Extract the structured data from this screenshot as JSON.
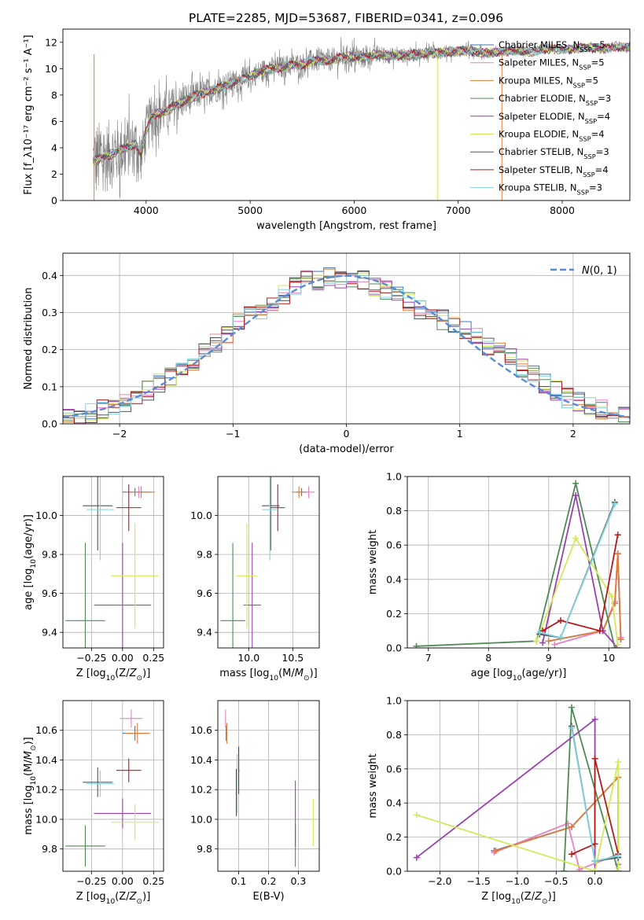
{
  "figure": {
    "title": "PLATE=2285, MJD=53687, FIBERID=0341, z=0.096"
  },
  "colors": {
    "Chabrier MILES": "#3a78b8",
    "Salpeter MILES": "#e87fc0",
    "Kroupa MILES": "#e07b39",
    "Chabrier ELODIE": "#4f8a56",
    "Salpeter ELODIE": "#9b3fb0",
    "Kroupa ELODIE": "#d4e85a",
    "Chabrier STELIB": "#555555",
    "Salpeter STELIB": "#b01b1b",
    "Kroupa STELIB": "#7fd4df",
    "normal_curve": "#5b8ad6",
    "data_spectrum": "#808080"
  },
  "chart_data": [
    {
      "type": "line",
      "id": "spectrum",
      "xlabel": "wavelength [Angstrom, rest frame]",
      "ylabel": "Flux [f_λ10⁻¹⁷ erg cm⁻² s⁻¹ A⁻¹]",
      "xlim": [
        3200,
        8650
      ],
      "ylim": [
        0,
        13
      ],
      "xticks": [
        4000,
        5000,
        6000,
        7000,
        8000
      ],
      "yticks": [
        0,
        2,
        4,
        6,
        8,
        10,
        12
      ],
      "grid": false,
      "legend_position": "right",
      "legend": [
        {
          "label": "Chabrier MILES, N",
          "sub": "SSP",
          "suffix": "=5",
          "series": "Chabrier MILES"
        },
        {
          "label": "Salpeter MILES, N",
          "sub": "SSP",
          "suffix": "=5",
          "series": "Salpeter MILES"
        },
        {
          "label": "Kroupa MILES, N",
          "sub": "SSP",
          "suffix": "=5",
          "series": "Kroupa MILES"
        },
        {
          "label": "Chabrier ELODIE, N",
          "sub": "SSP",
          "suffix": "=3",
          "series": "Chabrier ELODIE"
        },
        {
          "label": "Salpeter ELODIE, N",
          "sub": "SSP",
          "suffix": "=4",
          "series": "Salpeter ELODIE"
        },
        {
          "label": "Kroupa ELODIE, N",
          "sub": "SSP",
          "suffix": "=4",
          "series": "Kroupa ELODIE"
        },
        {
          "label": "Chabrier STELIB, N",
          "sub": "SSP",
          "suffix": "=3",
          "series": "Chabrier STELIB"
        },
        {
          "label": "Salpeter STELIB, N",
          "sub": "SSP",
          "suffix": "=4",
          "series": "Salpeter STELIB"
        },
        {
          "label": "Kroupa STELIB, N",
          "sub": "SSP",
          "suffix": "=3",
          "series": "Kroupa STELIB"
        }
      ],
      "model_shape": {
        "x": [
          3500,
          3600,
          3700,
          3800,
          3900,
          3950,
          4000,
          4050,
          4100,
          4200,
          4300,
          4400,
          4500,
          4600,
          4700,
          4800,
          4900,
          5000,
          5100,
          5200,
          5300,
          5400,
          5500,
          5600,
          5700,
          5800,
          5900,
          6000,
          6100,
          6200,
          6300,
          6400,
          6500,
          6600,
          6700,
          6800,
          6900,
          7000,
          7100,
          7200,
          7300,
          7400,
          7500,
          7600,
          7700,
          7800,
          7900,
          8000,
          8100,
          8200,
          8300,
          8400,
          8500,
          8600
        ],
        "y": [
          3.0,
          3.3,
          3.6,
          4.0,
          4.3,
          3.4,
          5.2,
          6.3,
          6.6,
          6.8,
          7.3,
          7.7,
          8.0,
          8.3,
          8.5,
          8.9,
          9.1,
          9.4,
          9.8,
          10.0,
          10.1,
          10.3,
          10.3,
          10.6,
          10.6,
          10.7,
          10.9,
          10.9,
          10.8,
          11.1,
          11.0,
          11.0,
          11.0,
          11.1,
          11.2,
          11.2,
          11.3,
          11.3,
          11.4,
          11.2,
          11.2,
          11.3,
          11.3,
          11.4,
          11.2,
          11.5,
          11.5,
          11.5,
          11.5,
          11.6,
          11.6,
          11.5,
          11.7,
          11.6
        ]
      },
      "data_noise_amplitude": {
        "x": [
          3500,
          4000,
          4500,
          5000,
          5600,
          6000,
          6400,
          6900,
          7400,
          8000,
          8600
        ],
        "y": [
          3.0,
          2.0,
          1.1,
          0.9,
          0.9,
          0.9,
          0.6,
          0.5,
          0.3,
          0.2,
          0.3
        ]
      },
      "spikes": [
        {
          "x": 6800,
          "series": "Kroupa ELODIE"
        },
        {
          "x": 7420,
          "series": "Kroupa MILES"
        },
        {
          "x": 3500,
          "series": "Kroupa MILES"
        }
      ]
    },
    {
      "type": "line",
      "id": "residuals",
      "xlabel": "(data-model)/error",
      "ylabel": "Normed distribution",
      "xlim": [
        -2.5,
        2.5
      ],
      "ylim": [
        0,
        0.46
      ],
      "xticks": [
        -2,
        -1,
        0,
        1,
        2
      ],
      "yticks": [
        0.0,
        0.1,
        0.2,
        0.3,
        0.4
      ],
      "grid": true,
      "legend_position": "top-right",
      "legend": [
        {
          "label": "N(0,1)",
          "series": "normal_curve"
        }
      ],
      "bin_width": 0.1,
      "histogram_center": {
        "x": [
          -2.45,
          -2.35,
          -2.25,
          -2.15,
          -2.05,
          -1.95,
          -1.85,
          -1.75,
          -1.65,
          -1.55,
          -1.45,
          -1.35,
          -1.25,
          -1.15,
          -1.05,
          -0.95,
          -0.85,
          -0.75,
          -0.65,
          -0.55,
          -0.45,
          -0.35,
          -0.25,
          -0.15,
          -0.05,
          0.05,
          0.15,
          0.25,
          0.35,
          0.45,
          0.55,
          0.65,
          0.75,
          0.85,
          0.95,
          1.05,
          1.15,
          1.25,
          1.35,
          1.45,
          1.55,
          1.65,
          1.75,
          1.85,
          1.95,
          2.05,
          2.15,
          2.25,
          2.35,
          2.45
        ],
        "y": [
          0.02,
          0.025,
          0.03,
          0.04,
          0.05,
          0.06,
          0.07,
          0.09,
          0.11,
          0.13,
          0.15,
          0.17,
          0.2,
          0.22,
          0.24,
          0.27,
          0.29,
          0.31,
          0.33,
          0.35,
          0.37,
          0.39,
          0.385,
          0.4,
          0.39,
          0.385,
          0.39,
          0.37,
          0.36,
          0.35,
          0.33,
          0.31,
          0.3,
          0.28,
          0.27,
          0.25,
          0.23,
          0.21,
          0.2,
          0.18,
          0.15,
          0.13,
          0.11,
          0.09,
          0.07,
          0.06,
          0.05,
          0.04,
          0.035,
          0.03
        ]
      }
    },
    {
      "type": "scatter",
      "id": "age-vs-Z",
      "xlabel": "Z [log10(Z/Z⊙)]",
      "ylabel": "age  [log10(age/yr)]",
      "xlim": [
        -0.48,
        0.33
      ],
      "ylim": [
        9.32,
        10.2
      ],
      "xticks": [
        -0.25,
        0.0,
        0.25
      ],
      "yticks": [
        9.4,
        9.6,
        9.8,
        10.0
      ],
      "grid": true,
      "points": [
        {
          "series": "Chabrier MILES",
          "x": 0.1,
          "y": 10.12,
          "xerr": 0.1,
          "yerr": 0.02
        },
        {
          "series": "Salpeter MILES",
          "x": 0.13,
          "y": 10.12,
          "xerr": 0.1,
          "yerr": 0.03
        },
        {
          "series": "Kroupa MILES",
          "x": 0.15,
          "y": 10.12,
          "xerr": 0.11,
          "yerr": 0.03
        },
        {
          "series": "Chabrier ELODIE",
          "x": -0.3,
          "y": 9.46,
          "xerr": 0.16,
          "yerr": 0.4
        },
        {
          "series": "Salpeter ELODIE",
          "x": 0.0,
          "y": 9.54,
          "xerr": 0.23,
          "yerr": 0.32
        },
        {
          "series": "Kroupa ELODIE",
          "x": 0.1,
          "y": 9.69,
          "xerr": 0.19,
          "yerr": 0.27
        },
        {
          "series": "Chabrier STELIB",
          "x": -0.2,
          "y": 10.05,
          "xerr": 0.12,
          "yerr": 0.23
        },
        {
          "series": "Salpeter STELIB",
          "x": 0.05,
          "y": 10.04,
          "xerr": 0.1,
          "yerr": 0.12
        },
        {
          "series": "Kroupa STELIB",
          "x": -0.18,
          "y": 10.03,
          "xerr": 0.11,
          "yerr": 0.26
        }
      ]
    },
    {
      "type": "scatter",
      "id": "age-vs-mass",
      "xlabel": "mass [log10(M/M⊙)]",
      "ylabel": "",
      "xlim": [
        9.65,
        10.8
      ],
      "ylim": [
        9.32,
        10.2
      ],
      "xticks": [
        10.0,
        10.5
      ],
      "yticks": [
        9.4,
        9.6,
        9.8,
        10.0
      ],
      "grid": true,
      "points": [
        {
          "series": "Chabrier MILES",
          "x": 10.6,
          "y": 10.12,
          "xerr": 0.06,
          "yerr": 0.02
        },
        {
          "series": "Salpeter MILES",
          "x": 10.68,
          "y": 10.12,
          "xerr": 0.07,
          "yerr": 0.03
        },
        {
          "series": "Kroupa MILES",
          "x": 10.57,
          "y": 10.12,
          "xerr": 0.08,
          "yerr": 0.03
        },
        {
          "series": "Chabrier ELODIE",
          "x": 9.82,
          "y": 9.46,
          "xerr": 0.14,
          "yerr": 0.4
        },
        {
          "series": "Salpeter ELODIE",
          "x": 10.04,
          "y": 9.54,
          "xerr": 0.1,
          "yerr": 0.32
        },
        {
          "series": "Kroupa ELODIE",
          "x": 9.98,
          "y": 9.69,
          "xerr": 0.12,
          "yerr": 0.27
        },
        {
          "series": "Chabrier STELIB",
          "x": 10.25,
          "y": 10.05,
          "xerr": 0.1,
          "yerr": 0.23
        },
        {
          "series": "Salpeter STELIB",
          "x": 10.33,
          "y": 10.04,
          "xerr": 0.08,
          "yerr": 0.12
        },
        {
          "series": "Kroupa STELIB",
          "x": 10.24,
          "y": 10.03,
          "xerr": 0.09,
          "yerr": 0.26
        }
      ]
    },
    {
      "type": "line",
      "id": "weight-vs-age",
      "xlabel": "age  [log10(age/yr)]",
      "ylabel": "mass weight",
      "xlim": [
        6.65,
        10.35
      ],
      "ylim": [
        0,
        1
      ],
      "xticks": [
        7,
        8,
        9,
        10
      ],
      "yticks": [
        0.0,
        0.2,
        0.4,
        0.6,
        0.8,
        1.0
      ],
      "grid": true,
      "series": [
        {
          "name": "Chabrier MILES",
          "x": [
            9.0,
            9.9,
            10.1,
            10.15,
            10.2
          ],
          "y": [
            0.04,
            0.1,
            0.26,
            0.55,
            0.05
          ]
        },
        {
          "name": "Salpeter MILES",
          "x": [
            9.1,
            9.9,
            10.1,
            10.15,
            10.2
          ],
          "y": [
            0.02,
            0.1,
            0.27,
            0.55,
            0.06
          ]
        },
        {
          "name": "Kroupa MILES",
          "x": [
            9.0,
            9.9,
            10.1,
            10.15,
            10.2
          ],
          "y": [
            0.04,
            0.1,
            0.26,
            0.55,
            0.05
          ]
        },
        {
          "name": "Chabrier ELODIE",
          "x": [
            6.8,
            8.8,
            9.45,
            10.1
          ],
          "y": [
            0.01,
            0.04,
            0.96,
            0.0
          ]
        },
        {
          "name": "Salpeter ELODIE",
          "x": [
            8.9,
            9.45,
            9.9,
            10.15
          ],
          "y": [
            0.03,
            0.89,
            0.1,
            0.0
          ]
        },
        {
          "name": "Kroupa ELODIE",
          "x": [
            8.8,
            9.45,
            10.05,
            10.15
          ],
          "y": [
            0.04,
            0.64,
            0.3,
            0.02
          ]
        },
        {
          "name": "Chabrier STELIB",
          "x": [
            8.85,
            9.2,
            10.1
          ],
          "y": [
            0.08,
            0.06,
            0.85
          ]
        },
        {
          "name": "Salpeter STELIB",
          "x": [
            8.9,
            9.2,
            9.85,
            10.15
          ],
          "y": [
            0.1,
            0.16,
            0.1,
            0.66
          ]
        },
        {
          "name": "Kroupa STELIB",
          "x": [
            8.85,
            9.2,
            10.1
          ],
          "y": [
            0.09,
            0.06,
            0.84
          ]
        }
      ]
    },
    {
      "type": "scatter",
      "id": "mass-vs-Z",
      "xlabel": "Z [log10(Z/Z⊙)]",
      "ylabel": "mass [log10(M/M⊙)]",
      "xlim": [
        -0.48,
        0.33
      ],
      "ylim": [
        9.65,
        10.8
      ],
      "xticks": [
        -0.25,
        0.0,
        0.25
      ],
      "yticks": [
        9.8,
        10.0,
        10.2,
        10.4,
        10.6
      ],
      "grid": true,
      "points": [
        {
          "series": "Chabrier MILES",
          "x": 0.1,
          "y": 10.58,
          "xerr": 0.1,
          "yerr": 0.05
        },
        {
          "series": "Salpeter MILES",
          "x": 0.07,
          "y": 10.68,
          "xerr": 0.09,
          "yerr": 0.06
        },
        {
          "series": "Kroupa MILES",
          "x": 0.12,
          "y": 10.58,
          "xerr": 0.1,
          "yerr": 0.07
        },
        {
          "series": "Chabrier ELODIE",
          "x": -0.3,
          "y": 9.82,
          "xerr": 0.16,
          "yerr": 0.14
        },
        {
          "series": "Salpeter ELODIE",
          "x": 0.0,
          "y": 10.04,
          "xerr": 0.23,
          "yerr": 0.1
        },
        {
          "series": "Kroupa ELODIE",
          "x": 0.1,
          "y": 9.98,
          "xerr": 0.19,
          "yerr": 0.12
        },
        {
          "series": "Chabrier STELIB",
          "x": -0.2,
          "y": 10.25,
          "xerr": 0.12,
          "yerr": 0.1
        },
        {
          "series": "Salpeter STELIB",
          "x": 0.05,
          "y": 10.33,
          "xerr": 0.1,
          "yerr": 0.08
        },
        {
          "series": "Kroupa STELIB",
          "x": -0.18,
          "y": 10.24,
          "xerr": 0.11,
          "yerr": 0.09
        }
      ]
    },
    {
      "type": "scatter",
      "id": "mass-vs-ebv",
      "xlabel": "E(B-V)",
      "ylabel": "",
      "xlim": [
        0.03,
        0.37
      ],
      "ylim": [
        9.65,
        10.8
      ],
      "xticks": [
        0.1,
        0.2,
        0.3
      ],
      "yticks": [
        9.8,
        10.0,
        10.2,
        10.4,
        10.6
      ],
      "grid": true,
      "points": [
        {
          "series": "Chabrier MILES",
          "x": 0.058,
          "y": 10.58,
          "xerr": 0.002,
          "yerr": 0.05
        },
        {
          "series": "Salpeter MILES",
          "x": 0.056,
          "y": 10.68,
          "xerr": 0.002,
          "yerr": 0.06
        },
        {
          "series": "Kroupa MILES",
          "x": 0.06,
          "y": 10.58,
          "xerr": 0.002,
          "yerr": 0.07
        },
        {
          "series": "Chabrier ELODIE",
          "x": 0.29,
          "y": 9.82,
          "xerr": 0.002,
          "yerr": 0.14
        },
        {
          "series": "Salpeter ELODIE",
          "x": 0.29,
          "y": 10.04,
          "xerr": 0.002,
          "yerr": 0.22
        },
        {
          "series": "Kroupa ELODIE",
          "x": 0.35,
          "y": 9.98,
          "xerr": 0.002,
          "yerr": 0.16
        },
        {
          "series": "Chabrier STELIB",
          "x": 0.092,
          "y": 10.18,
          "xerr": 0.002,
          "yerr": 0.16
        },
        {
          "series": "Salpeter STELIB",
          "x": 0.1,
          "y": 10.33,
          "xerr": 0.002,
          "yerr": 0.16
        },
        {
          "series": "Kroupa STELIB",
          "x": 0.095,
          "y": 10.24,
          "xerr": 0.002,
          "yerr": 0.2
        }
      ]
    },
    {
      "type": "line",
      "id": "weight-vs-Z",
      "xlabel": "Z [log10(Z/Z⊙)]",
      "ylabel": "mass weight",
      "xlim": [
        -2.42,
        0.45
      ],
      "ylim": [
        0,
        1
      ],
      "xticks": [
        -2.0,
        -1.5,
        -1.0,
        -0.5,
        0.0
      ],
      "yticks": [
        0.0,
        0.2,
        0.4,
        0.6,
        0.8,
        1.0
      ],
      "grid": true,
      "series": [
        {
          "name": "Chabrier MILES",
          "x": [
            -1.3,
            -0.3,
            0.3,
            0.3
          ],
          "y": [
            0.12,
            0.26,
            0.55,
            0.04
          ]
        },
        {
          "name": "Salpeter MILES",
          "x": [
            -1.3,
            -0.35,
            -0.2,
            0.3
          ],
          "y": [
            0.11,
            0.28,
            0.01,
            0.1
          ]
        },
        {
          "name": "Kroupa MILES",
          "x": [
            -1.28,
            -0.3,
            0.3,
            0.3
          ],
          "y": [
            0.12,
            0.26,
            0.55,
            0.04
          ]
        },
        {
          "name": "Chabrier ELODIE",
          "x": [
            -0.4,
            -0.3,
            0.3
          ],
          "y": [
            0.0,
            0.96,
            0.0
          ]
        },
        {
          "name": "Salpeter ELODIE",
          "x": [
            -2.3,
            0.0,
            0.0,
            0.3
          ],
          "y": [
            0.08,
            0.89,
            0.0,
            0.0
          ]
        },
        {
          "name": "Kroupa ELODIE",
          "x": [
            -2.3,
            0.0,
            0.3,
            0.3
          ],
          "y": [
            0.33,
            0.0,
            0.64,
            0.02
          ]
        },
        {
          "name": "Chabrier STELIB",
          "x": [
            -0.3,
            0.0,
            0.3
          ],
          "y": [
            0.85,
            0.06,
            0.08
          ]
        },
        {
          "name": "Salpeter STELIB",
          "x": [
            -0.3,
            0.0,
            0.0,
            0.3
          ],
          "y": [
            0.1,
            0.16,
            0.66,
            0.1
          ]
        },
        {
          "name": "Kroupa STELIB",
          "x": [
            -0.3,
            0.0,
            0.3
          ],
          "y": [
            0.84,
            0.06,
            0.09
          ]
        }
      ]
    }
  ]
}
